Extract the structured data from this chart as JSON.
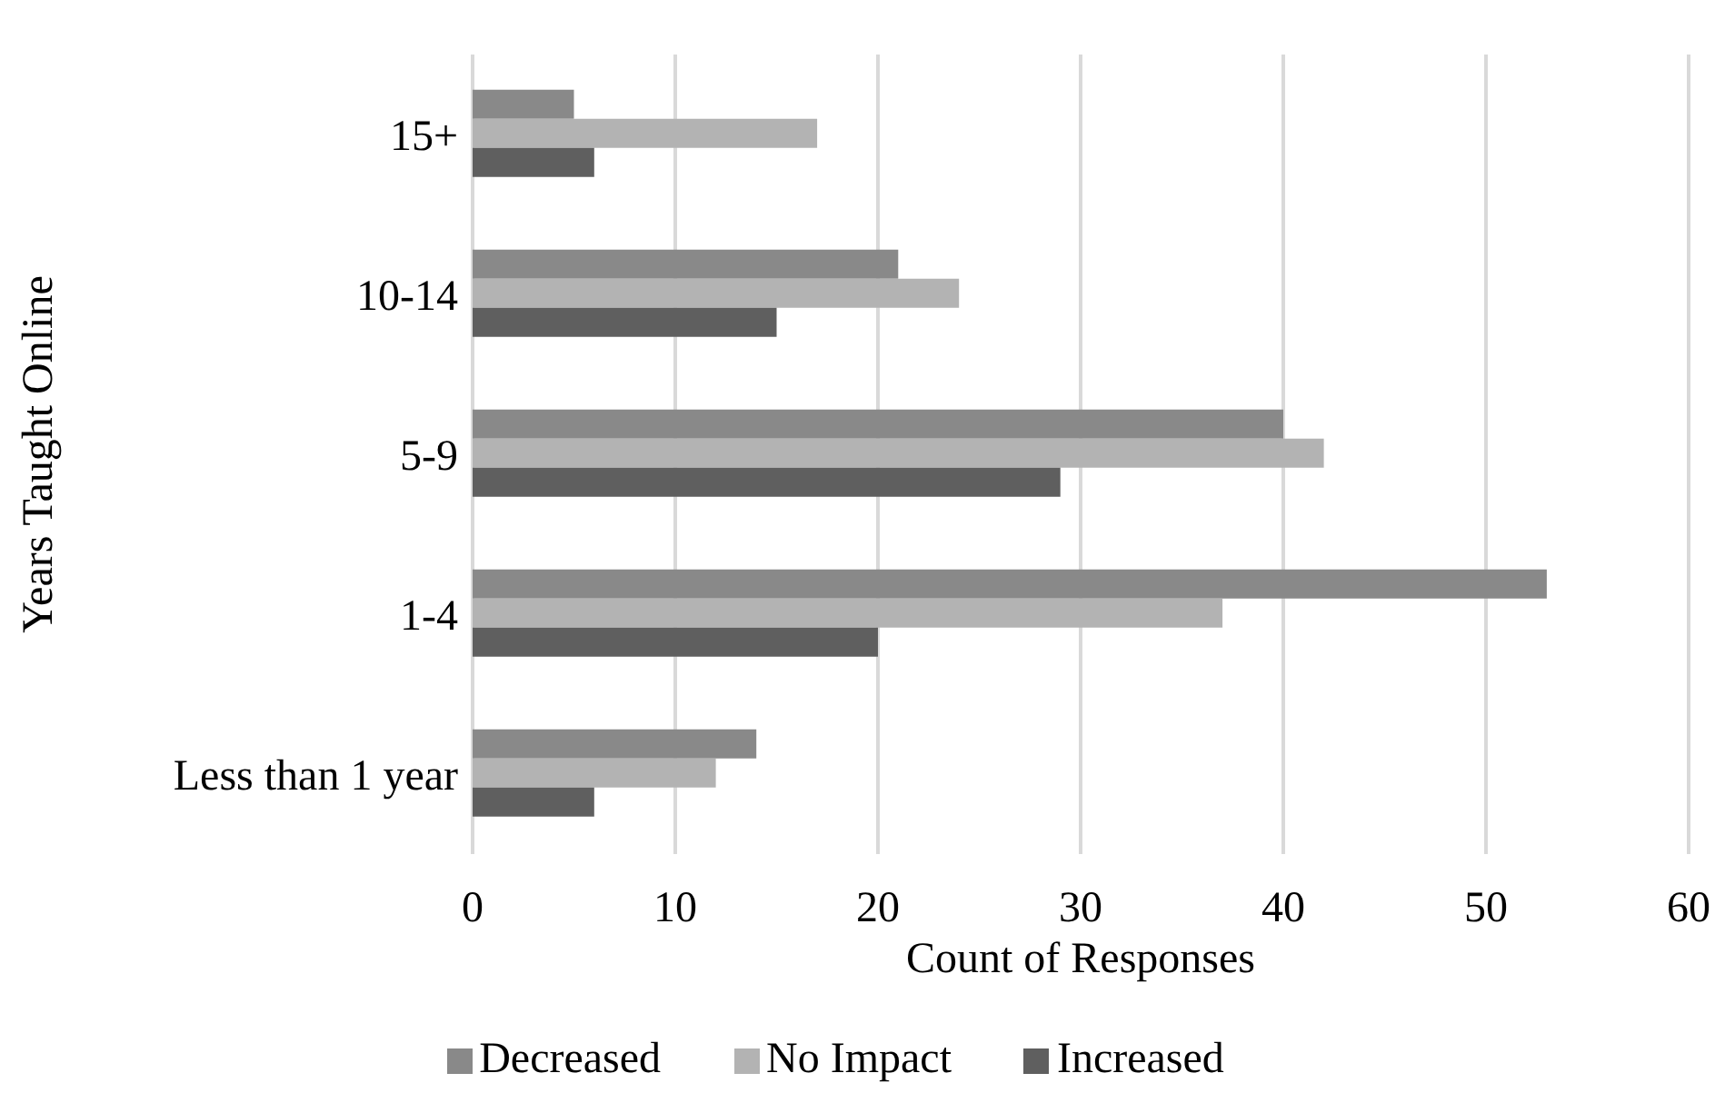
{
  "chart_data": {
    "type": "bar",
    "orientation": "horizontal",
    "xlabel": "Count of Responses",
    "ylabel": "Years Taught Online",
    "categories": [
      "15+",
      "10-14",
      "5-9",
      "1-4",
      "Less than 1 year"
    ],
    "series": [
      {
        "name": "Decreased",
        "color": "#898989",
        "values": [
          5,
          21,
          40,
          53,
          14
        ]
      },
      {
        "name": "No Impact",
        "color": "#b3b3b3",
        "values": [
          17,
          24,
          42,
          37,
          12
        ]
      },
      {
        "name": "Increased",
        "color": "#5f5f5f",
        "values": [
          6,
          15,
          29,
          20,
          6
        ]
      }
    ],
    "xlim": [
      0,
      60
    ],
    "xticks": [
      0,
      10,
      20,
      30,
      40,
      50,
      60
    ],
    "grid": "x",
    "legend": "bottom"
  }
}
